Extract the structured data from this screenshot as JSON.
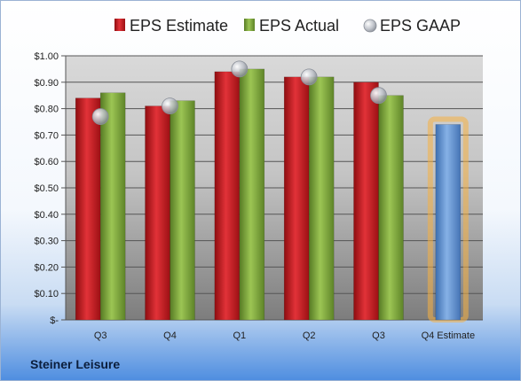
{
  "chart_data": {
    "type": "bar",
    "title": "",
    "xlabel": "",
    "ylabel": "",
    "categories": [
      "Q3",
      "Q4",
      "Q1",
      "Q2",
      "Q3",
      "Q4 Estimate"
    ],
    "series": [
      {
        "name": "EPS Estimate",
        "kind": "bar",
        "color": "#c0161c",
        "values": [
          0.84,
          0.81,
          0.94,
          0.92,
          0.9,
          null
        ]
      },
      {
        "name": "EPS Actual",
        "kind": "bar",
        "color": "#7aa33a",
        "values": [
          0.86,
          0.83,
          0.95,
          0.92,
          0.85,
          null
        ]
      },
      {
        "name": "EPS GAAP",
        "kind": "point",
        "color": "#b8bcc4",
        "values": [
          0.77,
          0.81,
          0.95,
          0.92,
          0.85,
          null
        ]
      },
      {
        "name": "",
        "kind": "bar-highlight",
        "color": "#5f93d3",
        "values": [
          null,
          null,
          null,
          null,
          null,
          0.74
        ]
      }
    ],
    "ylim": [
      0,
      1.0
    ],
    "yticks": [
      "$-",
      "$0.10",
      "$0.20",
      "$0.30",
      "$0.40",
      "$0.50",
      "$0.60",
      "$0.70",
      "$0.80",
      "$0.90",
      "$1.00"
    ],
    "grid": true,
    "legend": "top"
  },
  "footer": {
    "company": "Steiner Leisure"
  }
}
